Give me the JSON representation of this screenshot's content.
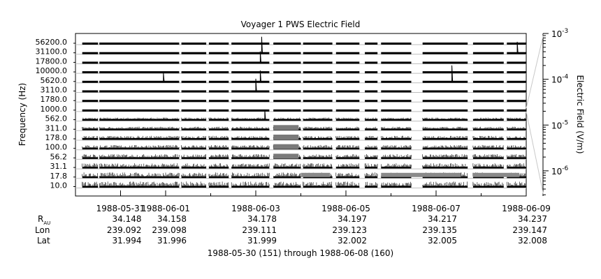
{
  "chart_data": {
    "type": "line",
    "title": "Voyager 1 PWS Electric Field",
    "ylabel": "Frequency (Hz)",
    "colorbar_label": "Electric Field (V/m)",
    "xlabel": "1988-05-30 (151) through 1988-06-08 (160)",
    "grid": false,
    "channels": [
      "56200.0",
      "31100.0",
      "17800.0",
      "10000.0",
      "5620.0",
      "3110.0",
      "1780.0",
      "1000.0",
      "562.0",
      "311.0",
      "178.0",
      "100.0",
      "56.2",
      "31.1",
      "17.8",
      "10.0"
    ],
    "x_ticks": [
      {
        "date": "1988-05-31",
        "label": "1988-05-31",
        "r_au": "34.148",
        "lon": "239.092",
        "lat": "31.994"
      },
      {
        "date": "1988-06-01",
        "label": "1988-06-01",
        "r_au": "34.158",
        "lon": "239.098",
        "lat": "31.996"
      },
      {
        "date": "1988-06-03",
        "label": "1988-06-03",
        "r_au": "34.178",
        "lon": "239.111",
        "lat": "31.999"
      },
      {
        "date": "1988-06-05",
        "label": "1988-06-05",
        "r_au": "34.197",
        "lon": "239.123",
        "lat": "32.002"
      },
      {
        "date": "1988-06-07",
        "label": "1988-06-07",
        "r_au": "34.217",
        "lon": "239.135",
        "lat": "32.005"
      },
      {
        "date": "1988-06-09",
        "label": "1988-06-09",
        "r_au": "34.237",
        "lon": "239.147",
        "lat": "32.008"
      }
    ],
    "ephemeris_labels": {
      "r": "R",
      "r_sub": "AU",
      "lon": "Lon",
      "lat": "Lat"
    },
    "colorbar_ticks": [
      {
        "base": "10",
        "exp": "-3",
        "value": 0.001
      },
      {
        "base": "10",
        "exp": "-4",
        "value": 0.0001
      },
      {
        "base": "10",
        "exp": "-5",
        "value": 1e-05
      },
      {
        "base": "10",
        "exp": "-6",
        "value": 1e-06
      }
    ],
    "colorbar_scale": "log",
    "x_range": [
      "1988-05-30",
      "1988-06-09"
    ],
    "data_gaps_days": [
      [
        0.5,
        0.53
      ],
      [
        2.3,
        2.35
      ],
      [
        2.9,
        2.96
      ],
      [
        3.4,
        3.46
      ],
      [
        4.3,
        4.39
      ],
      [
        5.0,
        5.05
      ],
      [
        5.7,
        5.78
      ],
      [
        6.3,
        6.42
      ],
      [
        6.7,
        6.78
      ],
      [
        7.45,
        7.7
      ],
      [
        8.7,
        8.82
      ],
      [
        9.5,
        9.57
      ],
      [
        10.0,
        10.1
      ]
    ],
    "spikes": [
      {
        "channel": "31100.0",
        "day": 4.13,
        "level": 1.0
      },
      {
        "channel": "17800.0",
        "day": 4.1,
        "level": 0.6
      },
      {
        "channel": "31100.0",
        "day": 9.8,
        "level": 0.6
      },
      {
        "channel": "5620.0",
        "day": 4.1,
        "level": 0.6
      },
      {
        "channel": "5620.0",
        "day": 1.95,
        "level": 0.4
      },
      {
        "channel": "5620.0",
        "day": 8.35,
        "level": 1.0
      },
      {
        "channel": "3110.0",
        "day": 4.0,
        "level": 0.7
      },
      {
        "channel": "562.0",
        "day": 4.2,
        "level": 0.5
      }
    ]
  }
}
